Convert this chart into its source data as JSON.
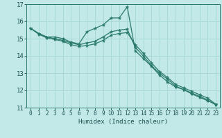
{
  "xlabel": "Humidex (Indice chaleur)",
  "bg_color": "#c2e8e8",
  "grid_color": "#a8d8d8",
  "line_color": "#2a7a6a",
  "xlim": [
    -0.5,
    23.5
  ],
  "ylim": [
    11,
    17
  ],
  "yticks": [
    11,
    12,
    13,
    14,
    15,
    16,
    17
  ],
  "xticks": [
    0,
    1,
    2,
    3,
    4,
    5,
    6,
    7,
    8,
    9,
    10,
    11,
    12,
    13,
    14,
    15,
    16,
    17,
    18,
    19,
    20,
    21,
    22,
    23
  ],
  "series": [
    {
      "x": [
        0,
        1,
        2,
        3,
        4,
        5,
        6,
        7,
        8,
        9,
        10,
        11,
        12,
        13,
        14,
        15,
        16,
        17,
        18,
        19,
        20,
        21,
        22,
        23
      ],
      "y": [
        15.6,
        15.3,
        15.1,
        15.1,
        15.0,
        14.8,
        14.7,
        15.4,
        15.6,
        15.8,
        16.2,
        16.2,
        16.85,
        14.3,
        13.85,
        13.4,
        12.9,
        12.5,
        12.2,
        12.05,
        11.8,
        11.6,
        11.4,
        11.2
      ]
    },
    {
      "x": [
        0,
        1,
        2,
        3,
        4,
        5,
        6,
        7,
        8,
        9,
        10,
        11,
        12,
        13,
        14,
        15,
        16,
        17,
        18,
        19,
        20,
        21,
        22,
        23
      ],
      "y": [
        15.6,
        15.3,
        15.1,
        15.0,
        14.9,
        14.75,
        14.65,
        14.75,
        14.85,
        15.1,
        15.4,
        15.5,
        15.55,
        14.5,
        14.0,
        13.45,
        13.0,
        12.65,
        12.25,
        12.05,
        11.85,
        11.65,
        11.45,
        11.15
      ]
    },
    {
      "x": [
        0,
        1,
        2,
        3,
        4,
        5,
        6,
        7,
        8,
        9,
        10,
        11,
        12,
        13,
        14,
        15,
        16,
        17,
        18,
        19,
        20,
        21,
        22,
        23
      ],
      "y": [
        15.6,
        15.25,
        15.05,
        14.95,
        14.85,
        14.65,
        14.55,
        14.6,
        14.7,
        14.9,
        15.2,
        15.3,
        15.35,
        14.65,
        14.15,
        13.6,
        13.1,
        12.75,
        12.35,
        12.15,
        11.95,
        11.75,
        11.55,
        11.2
      ]
    }
  ]
}
